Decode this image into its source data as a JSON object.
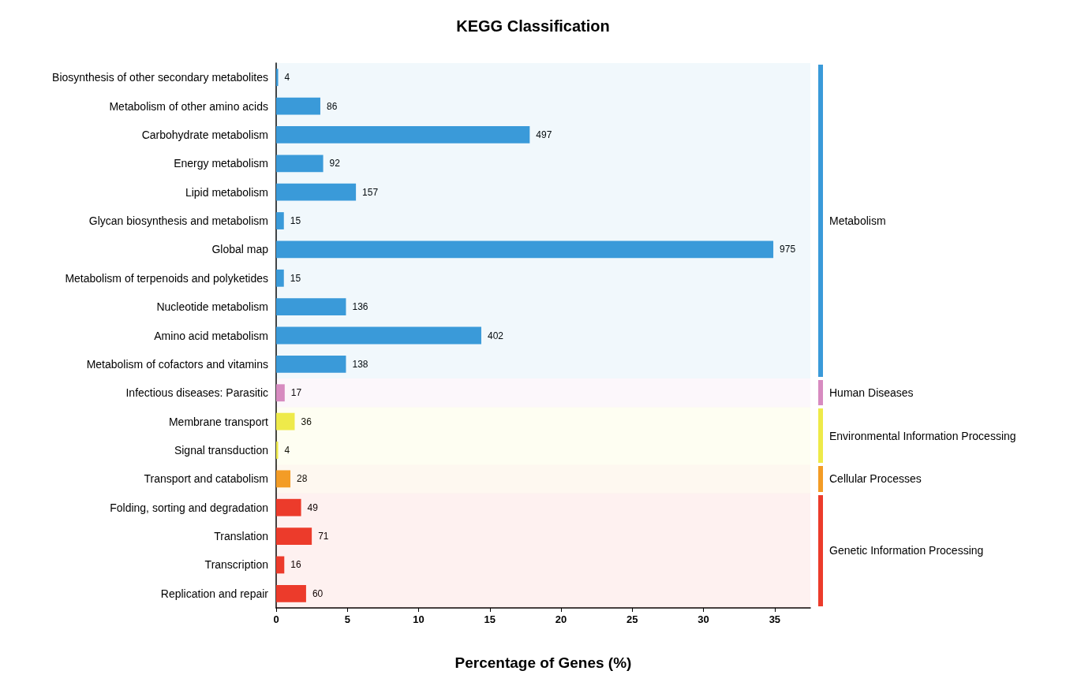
{
  "chart_data": {
    "type": "bar",
    "orientation": "horizontal",
    "title": "KEGG Classification",
    "xlabel": "Percentage of Genes (%)",
    "categories": [
      "Biosynthesis of other secondary metabolites",
      "Metabolism of other amino acids",
      "Carbohydrate metabolism",
      "Energy metabolism",
      "Lipid metabolism",
      "Glycan biosynthesis and metabolism",
      "Global map",
      "Metabolism of terpenoids and polyketides",
      "Nucleotide metabolism",
      "Amino acid metabolism",
      "Metabolism of cofactors and vitamins",
      "Infectious diseases: Parasitic",
      "Membrane transport",
      "Signal transduction",
      "Transport and catabolism",
      "Folding, sorting and degradation",
      "Translation",
      "Transcription",
      "Replication and repair"
    ],
    "values": [
      0.14,
      3.1,
      17.8,
      3.3,
      5.6,
      0.54,
      34.9,
      0.54,
      4.9,
      14.4,
      4.9,
      0.6,
      1.3,
      0.14,
      1.0,
      1.75,
      2.5,
      0.57,
      2.1
    ],
    "colors": [
      "#3a9ad9",
      "#3a9ad9",
      "#3a9ad9",
      "#3a9ad9",
      "#3a9ad9",
      "#3a9ad9",
      "#3a9ad9",
      "#3a9ad9",
      "#3a9ad9",
      "#3a9ad9",
      "#3a9ad9",
      "#d78bc0",
      "#eeea4a",
      "#eeea4a",
      "#f39c26",
      "#ec3b2b",
      "#ec3b2b",
      "#ec3b2b",
      "#ec3b2b"
    ],
    "annotations": [
      {
        "text": "4",
        "x": 0.14,
        "y": "Biosynthesis of other secondary metabolites"
      },
      {
        "text": "86",
        "x": 3.1,
        "y": "Metabolism of other amino acids"
      },
      {
        "text": "497",
        "x": 17.8,
        "y": "Carbohydrate metabolism"
      },
      {
        "text": "92",
        "x": 3.3,
        "y": "Energy metabolism"
      },
      {
        "text": "157",
        "x": 5.6,
        "y": "Lipid metabolism"
      },
      {
        "text": "15",
        "x": 0.54,
        "y": "Glycan biosynthesis and metabolism"
      },
      {
        "text": "975",
        "x": 34.9,
        "y": "Global map"
      },
      {
        "text": "15",
        "x": 0.54,
        "y": "Metabolism of terpenoids and polyketides"
      },
      {
        "text": "136",
        "x": 4.9,
        "y": "Nucleotide metabolism"
      },
      {
        "text": "402",
        "x": 14.4,
        "y": "Amino acid metabolism"
      },
      {
        "text": "138",
        "x": 4.9,
        "y": "Metabolism of cofactors and vitamins"
      },
      {
        "text": "17",
        "x": 0.6,
        "y": "Infectious diseases: Parasitic"
      },
      {
        "text": "36",
        "x": 1.3,
        "y": "Membrane transport"
      },
      {
        "text": "4",
        "x": 0.14,
        "y": "Signal transduction"
      },
      {
        "text": "28",
        "x": 1.0,
        "y": "Transport and catabolism"
      },
      {
        "text": "49",
        "x": 1.75,
        "y": "Folding, sorting and degradation"
      },
      {
        "text": "71",
        "x": 2.5,
        "y": "Translation"
      },
      {
        "text": "16",
        "x": 0.57,
        "y": "Transcription"
      },
      {
        "text": "60",
        "x": 2.1,
        "y": "Replication and repair"
      }
    ],
    "xlim": [
      0,
      37.5
    ],
    "xticks": [
      0,
      5,
      10,
      15,
      20,
      25,
      30,
      35
    ],
    "grid": false,
    "bands": [
      {
        "axis": "y",
        "from": "Biosynthesis of other secondary metabolites",
        "to": "Metabolism of cofactors and vitamins",
        "label": "Metabolism",
        "color": "#3a9ad9"
      },
      {
        "axis": "y",
        "from": "Infectious diseases: Parasitic",
        "to": "Infectious diseases: Parasitic",
        "label": "Human Diseases",
        "color": "#d78bc0"
      },
      {
        "axis": "y",
        "from": "Membrane transport",
        "to": "Signal transduction",
        "label": "Environmental Information Processing",
        "color": "#eeea4a"
      },
      {
        "axis": "y",
        "from": "Transport and catabolism",
        "to": "Transport and catabolism",
        "label": "Cellular Processes",
        "color": "#f39c26"
      },
      {
        "axis": "y",
        "from": "Folding, sorting and degradation",
        "to": "Replication and repair",
        "label": "Genetic Information Processing",
        "color": "#ec3b2b"
      }
    ]
  }
}
